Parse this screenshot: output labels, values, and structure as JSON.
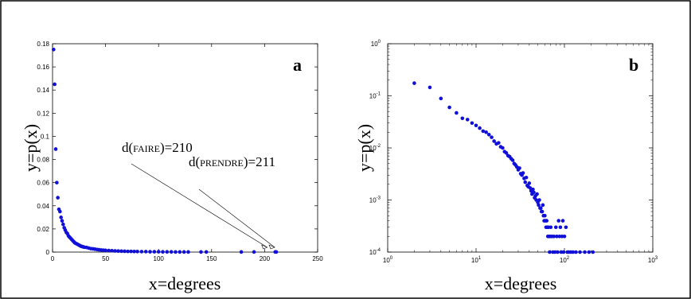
{
  "chart_data": [
    {
      "type": "scatter",
      "panel": "a",
      "xlabel": "x=degrees",
      "ylabel": "y=p(x)",
      "xlim": [
        0,
        250
      ],
      "ylim": [
        0,
        0.18
      ],
      "x_ticks": [
        "0",
        "50",
        "100",
        "150",
        "200",
        "250"
      ],
      "y_ticks": [
        "0",
        "0.02",
        "0.04",
        "0.06",
        "0.08",
        "0.1",
        "0.12",
        "0.14",
        "0.16",
        "0.18"
      ],
      "marker_color": "#1010d8",
      "annotations": [
        {
          "prefix": "d(",
          "word": "FAIRE",
          "suffix": ")=210",
          "target_x": 210,
          "target_y": 0
        },
        {
          "prefix": "d(",
          "word": "PRENDRE",
          "suffix": ")=211",
          "target_x": 211,
          "target_y": 0
        }
      ],
      "points": {
        "x": [
          1,
          2,
          3,
          4,
          5,
          6,
          7,
          8,
          9,
          10,
          11,
          12,
          13,
          14,
          15,
          16,
          17,
          18,
          19,
          20,
          21,
          22,
          23,
          24,
          25,
          26,
          27,
          28,
          29,
          30,
          32,
          34,
          36,
          38,
          40,
          42,
          44,
          46,
          48,
          50,
          53,
          56,
          59,
          62,
          65,
          68,
          71,
          74,
          77,
          80,
          84,
          88,
          92,
          96,
          100,
          104,
          108,
          112,
          116,
          120,
          124,
          128,
          140,
          145,
          178,
          190,
          210,
          211
        ],
        "y": [
          0.175,
          0.145,
          0.089,
          0.06,
          0.047,
          0.037,
          0.035,
          0.03,
          0.027,
          0.024,
          0.021,
          0.019,
          0.017,
          0.016,
          0.014,
          0.013,
          0.012,
          0.011,
          0.01,
          0.009,
          0.008,
          0.0075,
          0.007,
          0.0065,
          0.006,
          0.0055,
          0.005,
          0.0048,
          0.0045,
          0.0042,
          0.004,
          0.0035,
          0.003,
          0.0028,
          0.0025,
          0.0022,
          0.002,
          0.0018,
          0.0016,
          0.0015,
          0.0013,
          0.0012,
          0.001,
          0.0009,
          0.0008,
          0.0007,
          0.0006,
          0.0006,
          0.0005,
          0.0005,
          0.0004,
          0.0004,
          0.0003,
          0.0003,
          0.0003,
          0.0002,
          0.0002,
          0.0002,
          0.0001,
          0.0001,
          0.0001,
          0.0001,
          0.0001,
          0.0001,
          0.0001,
          0.0001,
          0.0001,
          0.0001
        ]
      }
    },
    {
      "type": "scatter",
      "panel": "b",
      "xlabel": "x=degrees",
      "ylabel": "y=p(x)",
      "xscale": "log",
      "yscale": "log",
      "xlim": [
        1,
        1000
      ],
      "ylim": [
        0.0001,
        1
      ],
      "x_ticks": [
        {
          "base": "10",
          "exp": "0"
        },
        {
          "base": "10",
          "exp": "1"
        },
        {
          "base": "10",
          "exp": "2"
        },
        {
          "base": "10",
          "exp": "3"
        }
      ],
      "y_ticks": [
        {
          "base": "10",
          "exp": "0"
        },
        {
          "base": "10",
          "exp": "-1"
        },
        {
          "base": "10",
          "exp": "-2"
        },
        {
          "base": "10",
          "exp": "-3"
        },
        {
          "base": "10",
          "exp": "-4"
        }
      ],
      "marker_color": "#1010d8",
      "points": {
        "x": [
          2,
          3,
          4,
          5,
          6,
          7,
          8,
          9,
          10,
          11,
          12,
          13,
          14,
          15,
          16,
          17,
          18,
          19,
          20,
          21,
          22,
          23,
          24,
          25,
          26,
          27,
          28,
          29,
          30,
          31,
          32,
          33,
          34,
          35,
          36,
          37,
          38,
          39,
          40,
          41,
          42,
          43,
          44,
          45,
          46,
          47,
          48,
          49,
          50,
          51,
          52,
          53,
          54,
          55,
          56,
          57,
          58,
          59,
          60,
          61,
          62,
          63,
          64,
          65,
          66,
          67,
          68,
          69,
          70,
          72,
          74,
          76,
          78,
          80,
          82,
          84,
          86,
          88,
          90,
          92,
          94,
          96,
          98,
          100,
          104,
          108,
          112,
          118,
          125,
          135,
          150,
          170,
          190,
          210
        ],
        "y": [
          0.175,
          0.145,
          0.089,
          0.06,
          0.047,
          0.037,
          0.035,
          0.03,
          0.027,
          0.024,
          0.021,
          0.02,
          0.018,
          0.016,
          0.0135,
          0.012,
          0.0125,
          0.0105,
          0.01,
          0.0085,
          0.008,
          0.0071,
          0.0068,
          0.0062,
          0.0058,
          0.005,
          0.0047,
          0.0043,
          0.0038,
          0.0041,
          0.0032,
          0.003,
          0.0033,
          0.0026,
          0.0022,
          0.0027,
          0.0019,
          0.0018,
          0.0021,
          0.0017,
          0.0015,
          0.0013,
          0.0016,
          0.0014,
          0.0011,
          0.0012,
          0.001,
          0.0013,
          0.0009,
          0.0008,
          0.001,
          0.0007,
          0.0007,
          0.0006,
          0.0006,
          0.0008,
          0.0005,
          0.0004,
          0.0005,
          0.0004,
          0.0003,
          0.0004,
          0.0003,
          0.0002,
          0.0003,
          0.0002,
          0.0001,
          0.0002,
          0.0003,
          0.0002,
          0.0001,
          0.0002,
          0.0001,
          0.0003,
          0.0002,
          0.0001,
          0.0004,
          0.0002,
          0.0003,
          0.0001,
          0.0002,
          0.0004,
          0.0001,
          0.0002,
          0.0003,
          0.0001,
          0.0001,
          0.0001,
          0.0001,
          0.0001,
          0.0001,
          0.0001,
          0.0001,
          0.0001
        ]
      }
    }
  ]
}
